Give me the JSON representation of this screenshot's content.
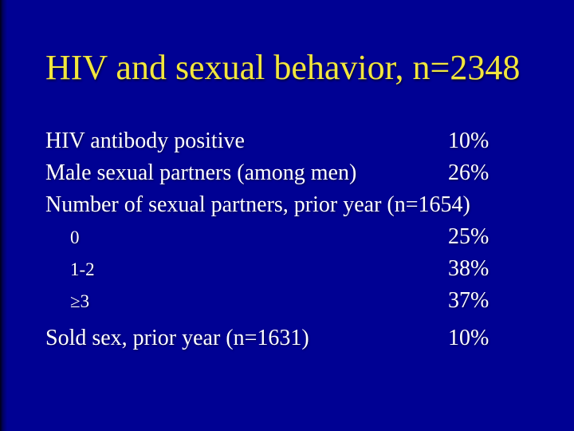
{
  "title": "HIV and sexual behavior, n=2348",
  "stats": [
    {
      "label": "HIV antibody positive",
      "value": "10%"
    },
    {
      "label": "Male sexual partners (among men)",
      "value": "26%"
    },
    {
      "label": "Number of sexual partners, prior year (n=1654)",
      "value": ""
    },
    {
      "label": "0",
      "value": "25%"
    },
    {
      "label": "1-2",
      "value": "38%"
    },
    {
      "label": "≥3",
      "value": "37%"
    },
    {
      "label": "Sold sex, prior year (n=1631)",
      "value": "10%"
    }
  ],
  "colors": {
    "background": "#000193",
    "title_text": "#F2E63D",
    "body_text": "#FFFFFF"
  }
}
